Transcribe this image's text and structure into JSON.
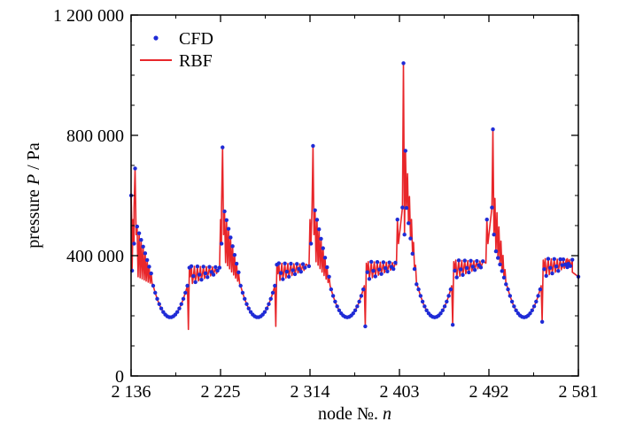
{
  "chart_data": {
    "type": "line",
    "title": "",
    "xlabel": {
      "prefix": "node №. ",
      "var": "n"
    },
    "ylabel": {
      "prefix": "pressure ",
      "var": "P",
      "suffix": " / Pa"
    },
    "xlim": [
      2136,
      2581
    ],
    "ylim": [
      0,
      1200000
    ],
    "xticks": [
      {
        "value": 2136,
        "label": "2 136"
      },
      {
        "value": 2225,
        "label": "2 225"
      },
      {
        "value": 2314,
        "label": "2 314"
      },
      {
        "value": 2403,
        "label": "2 403"
      },
      {
        "value": 2492,
        "label": "2 492"
      },
      {
        "value": 2581,
        "label": "2 581"
      }
    ],
    "yticks": [
      {
        "value": 0,
        "label": "0"
      },
      {
        "value": 400000,
        "label": "400 000"
      },
      {
        "value": 800000,
        "label": "800 000"
      },
      {
        "value": 1200000,
        "label": "1 200 000"
      }
    ],
    "legend_position": "top-left",
    "grid": false,
    "series": [
      {
        "name": "CFD",
        "style": "points",
        "color": "#1f2bd6"
      },
      {
        "name": "RBF",
        "style": "line",
        "color": "#e8262a"
      }
    ],
    "cycles": [
      {
        "start": 2137,
        "peak_x": 2140,
        "peak_y": 690000,
        "min_y": 195000,
        "plateau_y": 360000,
        "dip_y": 155000
      },
      {
        "start": 2224,
        "peak_x": 2227,
        "peak_y": 760000,
        "min_y": 195000,
        "plateau_y": 370000,
        "dip_y": 165000
      },
      {
        "start": 2313,
        "peak_x": 2317,
        "peak_y": 765000,
        "min_y": 195000,
        "plateau_y": 375000,
        "dip_y": 165000
      },
      {
        "start": 2400,
        "peak_x": 2407,
        "peak_y": 1040000,
        "min_y": 195000,
        "plateau_y": 380000,
        "dip_y": 170000
      },
      {
        "start": 2489,
        "peak_x": 2496,
        "peak_y": 820000,
        "min_y": 195000,
        "plateau_y": 385000,
        "dip_y": 180000
      }
    ],
    "tail": [
      [
        2565,
        360000
      ],
      [
        2570,
        390000
      ],
      [
        2575,
        345000
      ],
      [
        2581,
        330000
      ]
    ]
  }
}
